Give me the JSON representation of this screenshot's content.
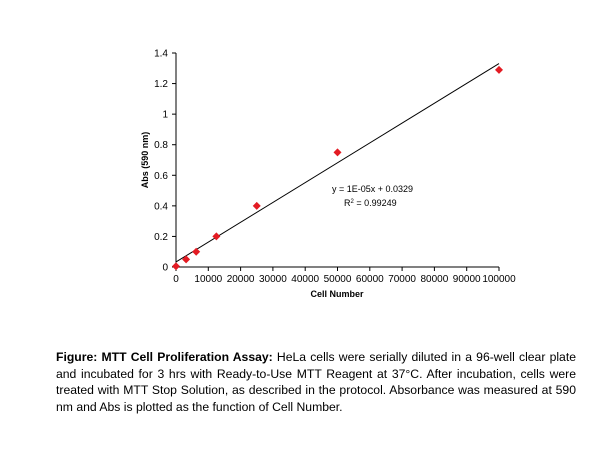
{
  "chart_data": {
    "type": "scatter",
    "xlabel": "Cell Number",
    "ylabel": "Abs (590 nm)",
    "xlim": [
      0,
      100000
    ],
    "ylim": [
      0,
      1.4
    ],
    "x_ticks": [
      "0",
      "10000",
      "20000",
      "30000",
      "40000",
      "50000",
      "60000",
      "70000",
      "80000",
      "90000",
      "100000"
    ],
    "y_ticks": [
      "0",
      "0.2",
      "0.4",
      "0.6",
      "0.8",
      "1",
      "1.2",
      "1.4"
    ],
    "x_tick_values": [
      0,
      10000,
      20000,
      30000,
      40000,
      50000,
      60000,
      70000,
      80000,
      90000,
      100000
    ],
    "y_tick_values": [
      0,
      0.2,
      0.4,
      0.6,
      0.8,
      1,
      1.2,
      1.4
    ],
    "marker_color": "#e31b23",
    "grid": false,
    "series": [
      {
        "x": [
          0,
          3125,
          6250,
          12500,
          25000,
          50000,
          100000
        ],
        "y": [
          0.005,
          0.05,
          0.1,
          0.2,
          0.4,
          0.75,
          1.29
        ]
      }
    ],
    "trendline": {
      "type": "linear",
      "slope": 1.298e-05,
      "intercept": 0.0329,
      "x_range": [
        0,
        100000
      ],
      "equation": "y = 1E-05x + 0.0329",
      "r_squared_prefix": "R",
      "r_squared_value": " = 0.99249"
    }
  },
  "caption": {
    "lead": "Figure: MTT Cell Proliferation Assay:",
    "body": " HeLa cells were serially diluted in a 96-well clear plate and incubated for 3 hrs with Ready-to-Use MTT Reagent at 37°C. After incubation, cells were treated with MTT Stop Solution, as described in the protocol. Absorbance was measured at 590 nm and Abs is plotted as the function of Cell Number."
  }
}
